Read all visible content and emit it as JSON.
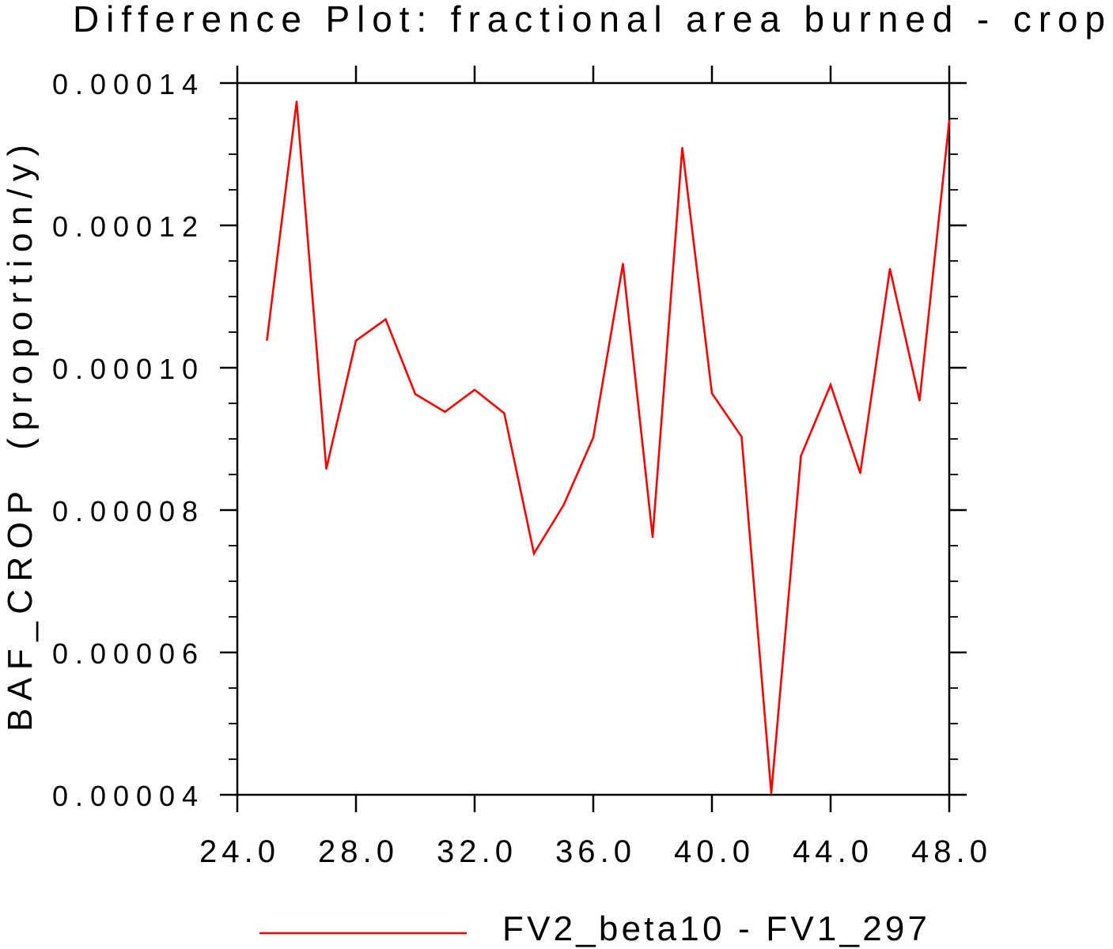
{
  "chart_data": {
    "type": "line",
    "title": "Difference Plot: fractional area burned - crop",
    "ylabel": "BAF_CROP  (proportion/y)",
    "xlim": [
      24,
      48
    ],
    "ylim": [
      4e-05,
      0.00014
    ],
    "xticks": [
      "24.0",
      "28.0",
      "32.0",
      "36.0",
      "40.0",
      "44.0",
      "48.0"
    ],
    "xtick_values": [
      24,
      28,
      32,
      36,
      40,
      44,
      48
    ],
    "yticks": [
      "0.00004",
      "0.00006",
      "0.00008",
      "0.00010",
      "0.00012",
      "0.00014"
    ],
    "ytick_values": [
      4e-05,
      6e-05,
      8e-05,
      0.0001,
      0.00012,
      0.00014
    ],
    "grid": false,
    "legend": "bottom",
    "series": [
      {
        "name": "FV2_beta10 - FV1_297",
        "color": "#ff0000",
        "x": [
          25,
          26,
          27,
          28,
          29,
          30,
          31,
          32,
          33,
          34,
          35,
          36,
          37,
          38,
          39,
          40,
          41,
          42,
          43,
          44,
          45,
          46,
          47,
          48
        ],
        "y": [
          0.0001039,
          0.0001374,
          8.58e-05,
          0.0001038,
          0.0001068,
          9.63e-05,
          9.38e-05,
          9.69e-05,
          9.36e-05,
          7.39e-05,
          8.07e-05,
          9.02e-05,
          0.0001146,
          7.62e-05,
          0.0001309,
          9.64e-05,
          9.03e-05,
          4.02e-05,
          8.76e-05,
          9.76e-05,
          8.52e-05,
          0.0001139,
          9.54e-05,
          0.0001347
        ]
      }
    ]
  }
}
